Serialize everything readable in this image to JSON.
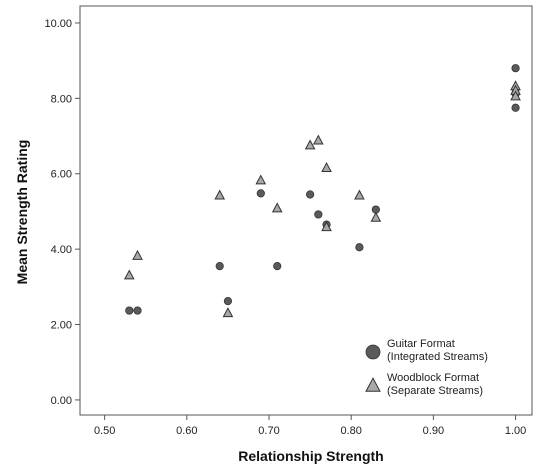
{
  "chart_data": {
    "type": "scatter",
    "xlabel": "Relationship Strength",
    "ylabel": "Mean Strength Rating",
    "xlim": [
      0.47,
      1.02
    ],
    "ylim": [
      -0.4,
      10.45
    ],
    "x_ticks": [
      0.5,
      0.6,
      0.7,
      0.8,
      0.9,
      1.0
    ],
    "x_tick_labels": [
      "0.50",
      "0.60",
      "0.70",
      "0.80",
      "0.90",
      "1.00"
    ],
    "y_ticks": [
      0,
      2,
      4,
      6,
      8,
      10
    ],
    "y_tick_labels": [
      "0.00",
      "2.00",
      "4.00",
      "6.00",
      "8.00",
      "10.00"
    ],
    "grid": false,
    "legend_position": "bottom-right",
    "series": [
      {
        "name": "Guitar Format\n(Integrated Streams)",
        "legend_lines": [
          "Guitar Format",
          "(Integrated Streams)"
        ],
        "marker": "circle",
        "color": "#5a5a5a",
        "points": [
          [
            0.53,
            2.37
          ],
          [
            0.54,
            2.37
          ],
          [
            0.64,
            3.55
          ],
          [
            0.65,
            2.62
          ],
          [
            0.69,
            5.48
          ],
          [
            0.71,
            3.55
          ],
          [
            0.75,
            5.45
          ],
          [
            0.76,
            4.92
          ],
          [
            0.77,
            4.65
          ],
          [
            0.81,
            4.05
          ],
          [
            0.83,
            5.05
          ],
          [
            1.0,
            8.8
          ],
          [
            1.0,
            8.25
          ],
          [
            1.0,
            8.12
          ],
          [
            1.0,
            7.75
          ]
        ]
      },
      {
        "name": "Woodblock Format\n(Separate Streams)",
        "legend_lines": [
          "Woodblock Format",
          "(Separate Streams)"
        ],
        "marker": "triangle",
        "color": "#a8a8a8",
        "points": [
          [
            0.53,
            3.3
          ],
          [
            0.54,
            3.82
          ],
          [
            0.64,
            5.42
          ],
          [
            0.65,
            2.3
          ],
          [
            0.69,
            5.82
          ],
          [
            0.71,
            5.08
          ],
          [
            0.75,
            6.75
          ],
          [
            0.76,
            6.88
          ],
          [
            0.77,
            6.15
          ],
          [
            0.77,
            4.58
          ],
          [
            0.81,
            5.42
          ],
          [
            0.83,
            4.83
          ],
          [
            1.0,
            8.32
          ],
          [
            1.0,
            8.2
          ],
          [
            1.0,
            8.05
          ]
        ]
      }
    ]
  }
}
